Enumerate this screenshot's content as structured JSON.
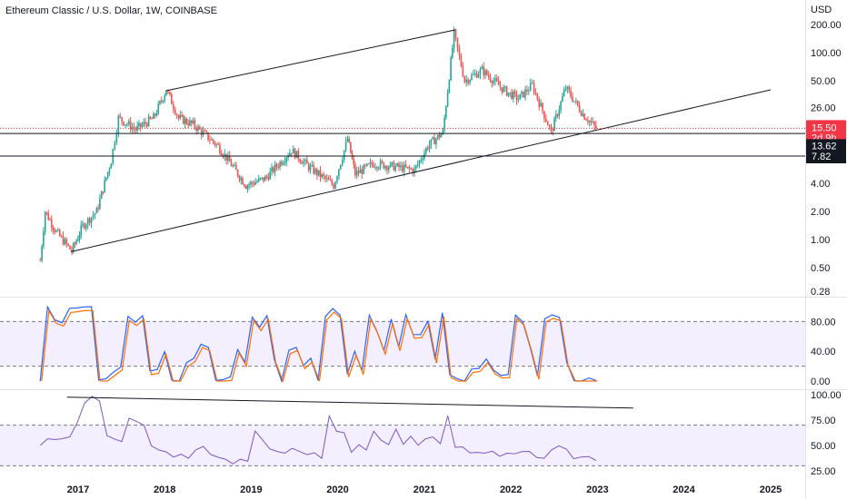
{
  "header": {
    "title": "Ethereum Classic / U.S. Dollar, 1W, COINBASE"
  },
  "colors": {
    "up": "#26a69a",
    "down": "#ef5350",
    "stoch_k": "#2962ff",
    "stoch_d": "#ff6d00",
    "rsi": "#7e57c2",
    "band_fill": "#f3efff",
    "trendline": "#131722",
    "price_badge": "#f23645",
    "level_badge": "#131722"
  },
  "chart_data": [
    {
      "type": "candlestick",
      "pane": "price",
      "title": "Ethereum Classic / U.S. Dollar, 1W, COINBASE",
      "currency": "USD",
      "scale": "log",
      "yticks": [
        "200.00",
        "100.00",
        "50.00",
        "26.00",
        "8.00",
        "4.00",
        "2.00",
        "1.00",
        "0.50",
        "0.28"
      ],
      "xticks": [
        "2017",
        "2018",
        "2019",
        "2020",
        "2021",
        "2022",
        "2023",
        "2024",
        "2025"
      ],
      "approx_close_path": [
        {
          "date": "2016-07-25",
          "close": 0.6
        },
        {
          "date": "2016-08-15",
          "close": 2.0
        },
        {
          "date": "2016-10-01",
          "close": 1.2
        },
        {
          "date": "2016-12-05",
          "close": 0.75
        },
        {
          "date": "2017-01-20",
          "close": 1.4
        },
        {
          "date": "2017-03-20",
          "close": 2.0
        },
        {
          "date": "2017-05-20",
          "close": 7.0
        },
        {
          "date": "2017-06-20",
          "close": 20.0
        },
        {
          "date": "2017-09-01",
          "close": 15.0
        },
        {
          "date": "2017-11-15",
          "close": 20.0
        },
        {
          "date": "2018-01-08",
          "close": 40.0
        },
        {
          "date": "2018-03-01",
          "close": 20.0
        },
        {
          "date": "2018-05-01",
          "close": 17.0
        },
        {
          "date": "2018-08-15",
          "close": 10.0
        },
        {
          "date": "2018-12-10",
          "close": 3.8
        },
        {
          "date": "2019-03-01",
          "close": 4.5
        },
        {
          "date": "2019-06-20",
          "close": 9.0
        },
        {
          "date": "2019-09-01",
          "close": 6.0
        },
        {
          "date": "2019-12-15",
          "close": 3.8
        },
        {
          "date": "2020-02-12",
          "close": 12.0
        },
        {
          "date": "2020-03-15",
          "close": 5.0
        },
        {
          "date": "2020-06-01",
          "close": 6.5
        },
        {
          "date": "2020-09-01",
          "close": 6.0
        },
        {
          "date": "2020-11-20",
          "close": 5.5
        },
        {
          "date": "2021-01-15",
          "close": 10.0
        },
        {
          "date": "2021-03-20",
          "close": 14.0
        },
        {
          "date": "2021-05-06",
          "close": 160.0
        },
        {
          "date": "2021-06-20",
          "close": 50.0
        },
        {
          "date": "2021-09-01",
          "close": 65.0
        },
        {
          "date": "2021-12-01",
          "close": 40.0
        },
        {
          "date": "2022-02-01",
          "close": 32.0
        },
        {
          "date": "2022-04-01",
          "close": 45.0
        },
        {
          "date": "2022-06-20",
          "close": 14.0
        },
        {
          "date": "2022-08-20",
          "close": 42.0
        },
        {
          "date": "2022-11-01",
          "close": 22.0
        },
        {
          "date": "2022-12-26",
          "close": 15.5
        }
      ],
      "trendlines": [
        {
          "from": {
            "date": "2018-01-05",
            "price": 39
          },
          "to": {
            "date": "2021-05-10",
            "price": 175
          }
        },
        {
          "from": {
            "date": "2016-12-01",
            "price": 0.74
          },
          "to": {
            "date": "2025-01-01",
            "price": 40
          }
        }
      ],
      "horizontal_levels": [
        13.62,
        7.82
      ],
      "last_price": {
        "value": "15.50",
        "countdown": "2d 9h"
      },
      "level_labels": [
        "13.62",
        "7.82"
      ]
    },
    {
      "type": "line",
      "pane": "stochastic",
      "yticks": [
        "80.00",
        "40.00",
        "0.00"
      ],
      "band": [
        20,
        80
      ],
      "ylim": [
        0,
        100
      ],
      "series": [
        {
          "values": [
            0.0,
            99.8,
            82.2,
            78.4,
            97.8,
            98.3,
            99.6,
            100.0,
            1.3,
            3.0,
            12.0,
            18.7,
            87.0,
            79.1,
            87.7,
            13.5,
            15.6,
            39.5,
            1.0,
            0.0,
            24.5,
            30.6,
            49.5,
            45.2,
            1.0,
            1.8,
            5.6,
            42.3,
            25.1,
            85.9,
            72.5,
            87.9,
            29.1,
            0.2,
            41.3,
            45.3,
            20.9,
            30.7,
            0.9,
            86.8,
            97.5,
            88.6,
            9.1,
            40.0,
            14.4,
            88.7,
            68.0,
            40.8,
            83.4,
            45.9,
            89.2,
            62.6,
            62.5,
            80.3,
            29.3,
            91.8,
            8.4,
            3.3,
            0.0,
            16.1,
            17.1,
            29.7,
            14.6,
            7.5,
            8.9,
            88.7,
            79.2,
            45.5,
            6.9,
            83.6,
            89.0,
            85.5,
            25.3,
            0.4,
            0.0,
            4.2,
            0.8
          ]
        },
        {
          "values": [
            0.0,
            94.4,
            77.7,
            73.9,
            92.2,
            93.3,
            94.9,
            94.6,
            0.2,
            0.0,
            7.3,
            14.8,
            81.5,
            74.6,
            82.9,
            8.6,
            10.2,
            35.9,
            0.0,
            0.0,
            19.3,
            26.3,
            45.2,
            40.9,
            0.0,
            0.0,
            0.8,
            37.7,
            20.1,
            81.5,
            67.5,
            83.4,
            25.5,
            0.0,
            36.8,
            41.1,
            16.6,
            25.6,
            0.0,
            82.3,
            92.6,
            84.2,
            5.4,
            34.8,
            8.7,
            83.6,
            63.3,
            36.1,
            77.8,
            40.7,
            84.1,
            57.4,
            58.4,
            76.2,
            24.1,
            87.0,
            4.6,
            0.0,
            0.0,
            11.5,
            13.2,
            24.7,
            9.8,
            4.2,
            4.6,
            84.2,
            74.8,
            40.7,
            2.3,
            79.8,
            84.3,
            81.1,
            21.1,
            0.0,
            0.0,
            0.0,
            0.0
          ]
        }
      ]
    },
    {
      "type": "line",
      "pane": "rsi",
      "yticks": [
        "100.00",
        "75.00",
        "50.00",
        "25.00"
      ],
      "band": [
        30,
        70
      ],
      "ylim": [
        25,
        100
      ],
      "series": [
        {
          "values": [
            50.0,
            56.6,
            55.8,
            56.7,
            58.5,
            72.5,
            91.9,
            98.3,
            93.8,
            59.6,
            56.4,
            53.8,
            76.9,
            73.6,
            70.0,
            49.6,
            45.6,
            43.7,
            38.6,
            41.4,
            37.4,
            45.6,
            49.1,
            41.2,
            38.4,
            36.5,
            31.9,
            36.5,
            34.5,
            64.2,
            55.5,
            46.5,
            44.1,
            42.4,
            47.1,
            44.1,
            41.0,
            42.9,
            37.3,
            79.0,
            63.9,
            62.6,
            43.2,
            50.7,
            45.5,
            64.0,
            55.3,
            50.9,
            66.1,
            51.2,
            59.1,
            50.3,
            56.6,
            58.3,
            51.7,
            79.2,
            48.2,
            48.6,
            42.8,
            43.2,
            42.4,
            44.4,
            39.4,
            42.4,
            41.7,
            43.9,
            44.2,
            38.1,
            37.4,
            45.6,
            49.6,
            46.4,
            37.0,
            38.7,
            39.1,
            35.3
          ]
        }
      ],
      "trendlines": [
        {
          "from": {
            "date": "2016-11-15",
            "value": 97.6
          },
          "to": {
            "date": "2023-06-01",
            "value": 86.8
          }
        }
      ]
    }
  ]
}
